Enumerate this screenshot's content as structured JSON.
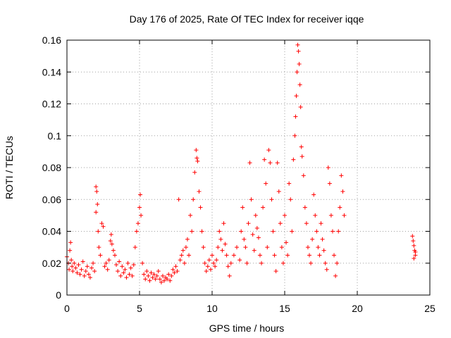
{
  "chart_data": {
    "type": "scatter",
    "title": "Day 176 of 2025, Rate Of TEC Index for receiver iqqe",
    "xlabel": "GPS time / hours",
    "ylabel": "ROTI / TECUs",
    "xlim": [
      0,
      25
    ],
    "ylim": [
      0,
      0.16
    ],
    "x_ticks": [
      "0",
      "5",
      "10",
      "15",
      "20",
      "25"
    ],
    "y_ticks": [
      "0",
      "0.02",
      "0.04",
      "0.06",
      "0.08",
      "0.1",
      "0.12",
      "0.14",
      "0.16"
    ],
    "grid": true,
    "legend": "none",
    "marker": "plus",
    "series_color": "#ff0000",
    "series": [
      {
        "points": [
          [
            0.0,
            0.024
          ],
          [
            0.1,
            0.02
          ],
          [
            0.15,
            0.016
          ],
          [
            0.2,
            0.028
          ],
          [
            0.25,
            0.033
          ],
          [
            0.3,
            0.022
          ],
          [
            0.35,
            0.018
          ],
          [
            0.4,
            0.015
          ],
          [
            0.5,
            0.02
          ],
          [
            0.6,
            0.017
          ],
          [
            0.7,
            0.014
          ],
          [
            0.8,
            0.019
          ],
          [
            0.9,
            0.013
          ],
          [
            1.0,
            0.016
          ],
          [
            1.1,
            0.021
          ],
          [
            1.2,
            0.012
          ],
          [
            1.3,
            0.015
          ],
          [
            1.4,
            0.018
          ],
          [
            1.5,
            0.013
          ],
          [
            1.6,
            0.011
          ],
          [
            1.7,
            0.017
          ],
          [
            1.8,
            0.02
          ],
          [
            1.9,
            0.015
          ],
          [
            2.0,
            0.068
          ],
          [
            2.05,
            0.065
          ],
          [
            2.1,
            0.057
          ],
          [
            2.0,
            0.052
          ],
          [
            2.15,
            0.04
          ],
          [
            2.2,
            0.03
          ],
          [
            2.3,
            0.025
          ],
          [
            2.4,
            0.045
          ],
          [
            2.5,
            0.043
          ],
          [
            2.6,
            0.018
          ],
          [
            2.7,
            0.02
          ],
          [
            2.8,
            0.016
          ],
          [
            2.9,
            0.022
          ],
          [
            3.0,
            0.034
          ],
          [
            3.05,
            0.038
          ],
          [
            3.1,
            0.032
          ],
          [
            3.2,
            0.028
          ],
          [
            3.3,
            0.025
          ],
          [
            3.4,
            0.019
          ],
          [
            3.5,
            0.015
          ],
          [
            3.6,
            0.021
          ],
          [
            3.7,
            0.012
          ],
          [
            3.8,
            0.018
          ],
          [
            3.9,
            0.014
          ],
          [
            4.0,
            0.016
          ],
          [
            4.1,
            0.011
          ],
          [
            4.2,
            0.02
          ],
          [
            4.3,
            0.013
          ],
          [
            4.4,
            0.017
          ],
          [
            4.5,
            0.012
          ],
          [
            4.6,
            0.019
          ],
          [
            4.7,
            0.03
          ],
          [
            4.8,
            0.04
          ],
          [
            4.9,
            0.045
          ],
          [
            5.0,
            0.055
          ],
          [
            5.05,
            0.063
          ],
          [
            5.1,
            0.05
          ],
          [
            5.2,
            0.02
          ],
          [
            5.3,
            0.013
          ],
          [
            5.4,
            0.01
          ],
          [
            5.5,
            0.015
          ],
          [
            5.6,
            0.012
          ],
          [
            5.7,
            0.009
          ],
          [
            5.8,
            0.014
          ],
          [
            5.9,
            0.011
          ],
          [
            6.0,
            0.013
          ],
          [
            6.1,
            0.01
          ],
          [
            6.2,
            0.012
          ],
          [
            6.3,
            0.015
          ],
          [
            6.4,
            0.01
          ],
          [
            6.5,
            0.008
          ],
          [
            6.6,
            0.012
          ],
          [
            6.7,
            0.009
          ],
          [
            6.8,
            0.011
          ],
          [
            6.9,
            0.01
          ],
          [
            7.0,
            0.013
          ],
          [
            7.1,
            0.009
          ],
          [
            7.2,
            0.012
          ],
          [
            7.3,
            0.016
          ],
          [
            7.4,
            0.014
          ],
          [
            7.5,
            0.018
          ],
          [
            7.6,
            0.015
          ],
          [
            7.7,
            0.06
          ],
          [
            7.8,
            0.022
          ],
          [
            7.9,
            0.025
          ],
          [
            8.0,
            0.028
          ],
          [
            8.1,
            0.02
          ],
          [
            8.2,
            0.03
          ],
          [
            8.3,
            0.035
          ],
          [
            8.4,
            0.025
          ],
          [
            8.5,
            0.05
          ],
          [
            8.6,
            0.04
          ],
          [
            8.7,
            0.06
          ],
          [
            8.8,
            0.077
          ],
          [
            8.9,
            0.091
          ],
          [
            8.95,
            0.086
          ],
          [
            9.0,
            0.084
          ],
          [
            9.1,
            0.065
          ],
          [
            9.2,
            0.055
          ],
          [
            9.3,
            0.04
          ],
          [
            9.4,
            0.03
          ],
          [
            9.5,
            0.02
          ],
          [
            9.6,
            0.015
          ],
          [
            9.7,
            0.018
          ],
          [
            9.8,
            0.022
          ],
          [
            9.9,
            0.016
          ],
          [
            10.0,
            0.025
          ],
          [
            10.1,
            0.02
          ],
          [
            10.2,
            0.018
          ],
          [
            10.3,
            0.022
          ],
          [
            10.4,
            0.03
          ],
          [
            10.5,
            0.04
          ],
          [
            10.6,
            0.035
          ],
          [
            10.7,
            0.028
          ],
          [
            10.8,
            0.045
          ],
          [
            10.9,
            0.032
          ],
          [
            11.0,
            0.025
          ],
          [
            11.1,
            0.018
          ],
          [
            11.2,
            0.012
          ],
          [
            11.3,
            0.02
          ],
          [
            11.5,
            0.025
          ],
          [
            11.7,
            0.03
          ],
          [
            11.9,
            0.022
          ],
          [
            12.0,
            0.04
          ],
          [
            12.1,
            0.055
          ],
          [
            12.2,
            0.035
          ],
          [
            12.3,
            0.03
          ],
          [
            12.4,
            0.02
          ],
          [
            12.5,
            0.045
          ],
          [
            12.6,
            0.083
          ],
          [
            12.7,
            0.06
          ],
          [
            12.8,
            0.038
          ],
          [
            12.9,
            0.028
          ],
          [
            13.0,
            0.05
          ],
          [
            13.1,
            0.042
          ],
          [
            13.2,
            0.036
          ],
          [
            13.3,
            0.025
          ],
          [
            13.4,
            0.02
          ],
          [
            13.5,
            0.055
          ],
          [
            13.6,
            0.085
          ],
          [
            13.7,
            0.07
          ],
          [
            13.8,
            0.03
          ],
          [
            13.9,
            0.091
          ],
          [
            14.0,
            0.083
          ],
          [
            14.1,
            0.06
          ],
          [
            14.2,
            0.04
          ],
          [
            14.3,
            0.025
          ],
          [
            14.4,
            0.015
          ],
          [
            14.5,
            0.083
          ],
          [
            14.6,
            0.065
          ],
          [
            14.7,
            0.045
          ],
          [
            14.8,
            0.03
          ],
          [
            14.9,
            0.02
          ],
          [
            15.0,
            0.05
          ],
          [
            15.1,
            0.033
          ],
          [
            15.2,
            0.025
          ],
          [
            15.3,
            0.07
          ],
          [
            15.4,
            0.06
          ],
          [
            15.5,
            0.04
          ],
          [
            15.6,
            0.085
          ],
          [
            15.7,
            0.1
          ],
          [
            15.75,
            0.112
          ],
          [
            15.8,
            0.125
          ],
          [
            15.85,
            0.14
          ],
          [
            15.9,
            0.157
          ],
          [
            15.95,
            0.153
          ],
          [
            16.0,
            0.145
          ],
          [
            16.05,
            0.132
          ],
          [
            16.1,
            0.118
          ],
          [
            16.15,
            0.093
          ],
          [
            16.2,
            0.087
          ],
          [
            16.3,
            0.075
          ],
          [
            16.4,
            0.055
          ],
          [
            16.5,
            0.045
          ],
          [
            16.6,
            0.03
          ],
          [
            16.7,
            0.025
          ],
          [
            16.8,
            0.02
          ],
          [
            16.9,
            0.035
          ],
          [
            17.0,
            0.063
          ],
          [
            17.1,
            0.05
          ],
          [
            17.2,
            0.04
          ],
          [
            17.3,
            0.03
          ],
          [
            17.4,
            0.025
          ],
          [
            17.5,
            0.045
          ],
          [
            17.6,
            0.035
          ],
          [
            17.7,
            0.028
          ],
          [
            17.8,
            0.02
          ],
          [
            17.9,
            0.016
          ],
          [
            18.0,
            0.08
          ],
          [
            18.1,
            0.07
          ],
          [
            18.2,
            0.05
          ],
          [
            18.3,
            0.04
          ],
          [
            18.4,
            0.025
          ],
          [
            18.5,
            0.012
          ],
          [
            18.6,
            0.02
          ],
          [
            18.7,
            0.04
          ],
          [
            18.8,
            0.055
          ],
          [
            18.9,
            0.075
          ],
          [
            19.0,
            0.065
          ],
          [
            19.1,
            0.05
          ],
          [
            23.8,
            0.037
          ],
          [
            23.85,
            0.034
          ],
          [
            23.9,
            0.031
          ],
          [
            23.95,
            0.028
          ],
          [
            24.0,
            0.025
          ],
          [
            23.9,
            0.023
          ],
          [
            24.0,
            0.027
          ]
        ]
      }
    ]
  }
}
